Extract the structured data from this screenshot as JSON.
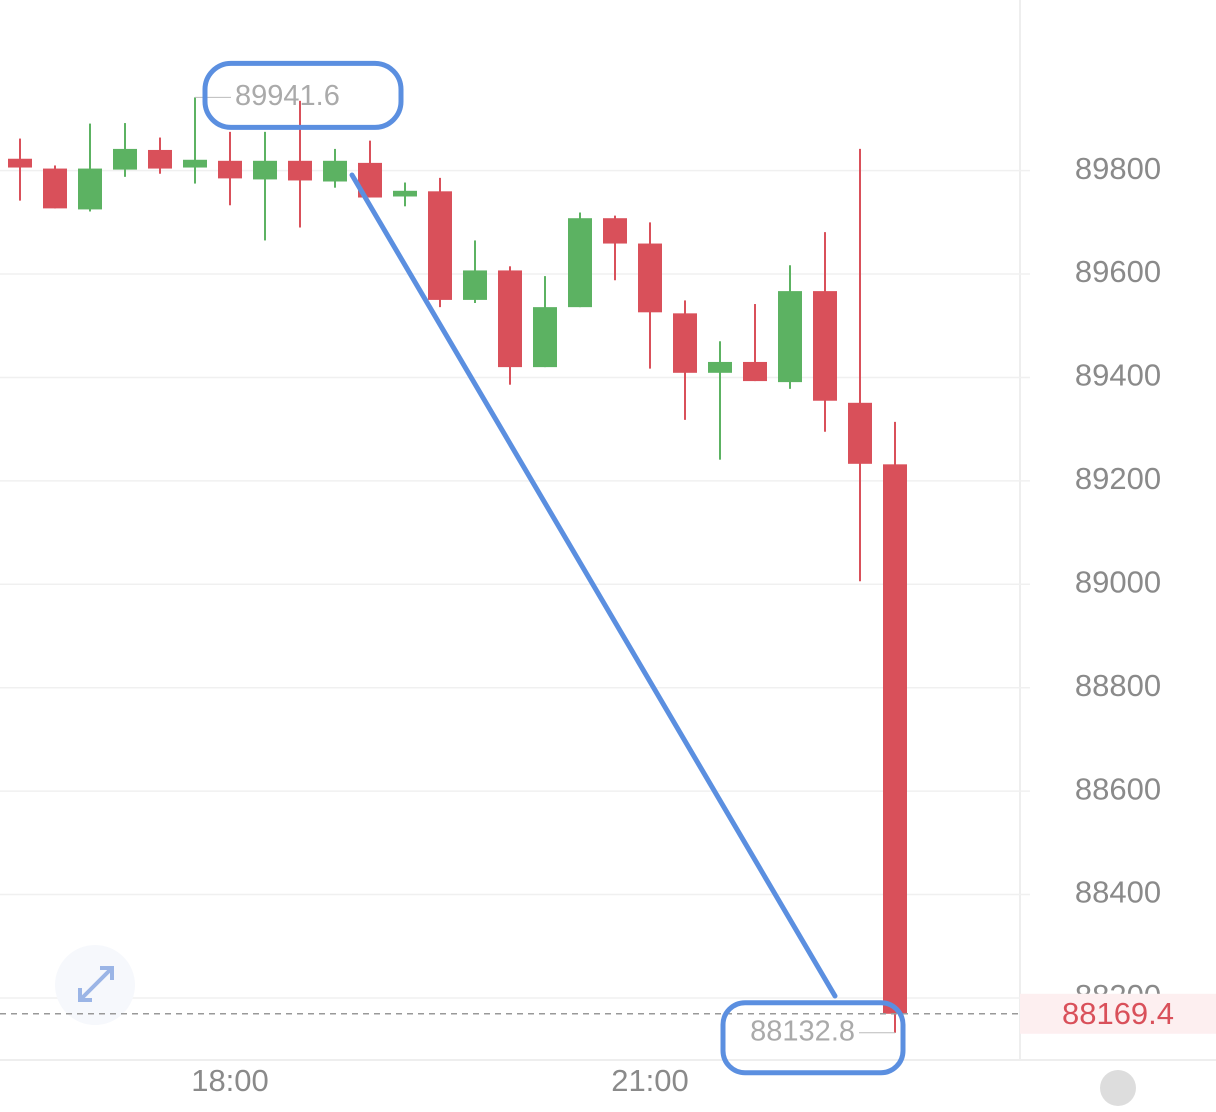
{
  "chart_data": {
    "type": "candlestick",
    "categories": [
      null,
      null,
      null,
      null,
      null,
      null,
      "18:00",
      null,
      null,
      null,
      null,
      null,
      null,
      null,
      null,
      null,
      null,
      null,
      "21:00",
      null,
      null,
      null,
      null,
      null,
      null,
      null
    ],
    "open": [
      89823,
      89804,
      89725,
      89802,
      89840,
      89806,
      89819,
      89783,
      89819,
      89779,
      89815,
      89750,
      89760,
      89550,
      89607,
      89420,
      89536,
      89708,
      89659,
      89524,
      89409,
      89430,
      89391,
      89567,
      89351,
      89232
    ],
    "high": [
      89862,
      89810,
      89891,
      89892,
      89864,
      89941.6,
      89875,
      89875,
      89935,
      89842,
      89858,
      89777,
      89786,
      89665,
      89615,
      89596,
      89719,
      89713,
      89700,
      89549,
      89470,
      89542,
      89617,
      89681,
      89842,
      89314
    ],
    "low": [
      89742,
      89727,
      89721,
      89788,
      89794,
      89775,
      89733,
      89665,
      89690,
      89767,
      89748,
      89731,
      89536,
      89544,
      89386,
      89420,
      89536,
      89588,
      89417,
      89318,
      89241,
      89393,
      89378,
      89295,
      89006,
      88132.8
    ],
    "close": [
      89806,
      89727,
      89804,
      89842,
      89804,
      89821,
      89785,
      89819,
      89781,
      89819,
      89748,
      89761,
      89550,
      89607,
      89420,
      89536,
      89708,
      89659,
      89526,
      89409,
      89430,
      89393,
      89567,
      89355,
      89233,
      88169.4
    ],
    "up_color": "#5cb262",
    "down_color": "#d9505a",
    "ylim": [
      88080,
      90130
    ],
    "yticks": [
      88200,
      88400,
      88600,
      88800,
      89000,
      89200,
      89400,
      89600,
      89800
    ],
    "grid": true
  }
}
